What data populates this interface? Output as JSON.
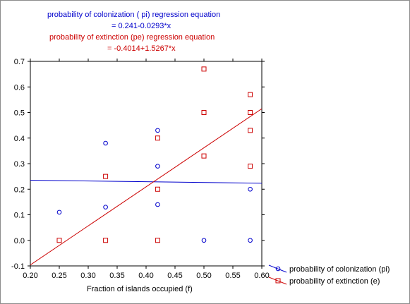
{
  "header": {
    "line1": "probability of colonization ( pi) regression  equation",
    "line2": "= 0.241-0.0293*x",
    "line3": "probability of extinction (pe)  regression  equation",
    "line4": "= -0.4014+1.5267*x",
    "color_blue": "#0000cc",
    "color_red": "#cc0000"
  },
  "chart_data": {
    "type": "scatter",
    "xlabel": "Fraction of islands occupied (f)",
    "ylabel": "",
    "xlim": [
      0.2,
      0.6
    ],
    "ylim": [
      -0.1,
      0.7
    ],
    "xticks": [
      "0.20",
      "0.25",
      "0.30",
      "0.35",
      "0.40",
      "0.45",
      "0.50",
      "0.55",
      "0.60"
    ],
    "yticks": [
      "-0.1",
      "0.0",
      "0.1",
      "0.2",
      "0.3",
      "0.4",
      "0.5",
      "0.6",
      "0.7"
    ],
    "legend_position": "bottom-right, outside plot",
    "series": [
      {
        "name": "probability  of colonization (pi)",
        "color": "#0000cc",
        "marker": "circle",
        "points": [
          [
            0.25,
            0.11
          ],
          [
            0.33,
            0.38
          ],
          [
            0.33,
            0.13
          ],
          [
            0.42,
            0.43
          ],
          [
            0.42,
            0.29
          ],
          [
            0.42,
            0.14
          ],
          [
            0.5,
            0.0
          ],
          [
            0.58,
            0.2
          ],
          [
            0.58,
            0.0
          ]
        ],
        "fit": {
          "intercept": 0.241,
          "slope": -0.0293
        }
      },
      {
        "name": "probability  of  extinction (e)",
        "color": "#cc0000",
        "marker": "square",
        "points": [
          [
            0.25,
            0.0
          ],
          [
            0.33,
            0.25
          ],
          [
            0.33,
            0.0
          ],
          [
            0.42,
            0.4
          ],
          [
            0.42,
            0.2
          ],
          [
            0.42,
            0.0
          ],
          [
            0.5,
            0.67
          ],
          [
            0.5,
            0.5
          ],
          [
            0.5,
            0.33
          ],
          [
            0.58,
            0.57
          ],
          [
            0.58,
            0.5
          ],
          [
            0.58,
            0.43
          ],
          [
            0.58,
            0.29
          ]
        ],
        "fit": {
          "intercept": -0.4014,
          "slope": 1.5267
        }
      }
    ]
  }
}
